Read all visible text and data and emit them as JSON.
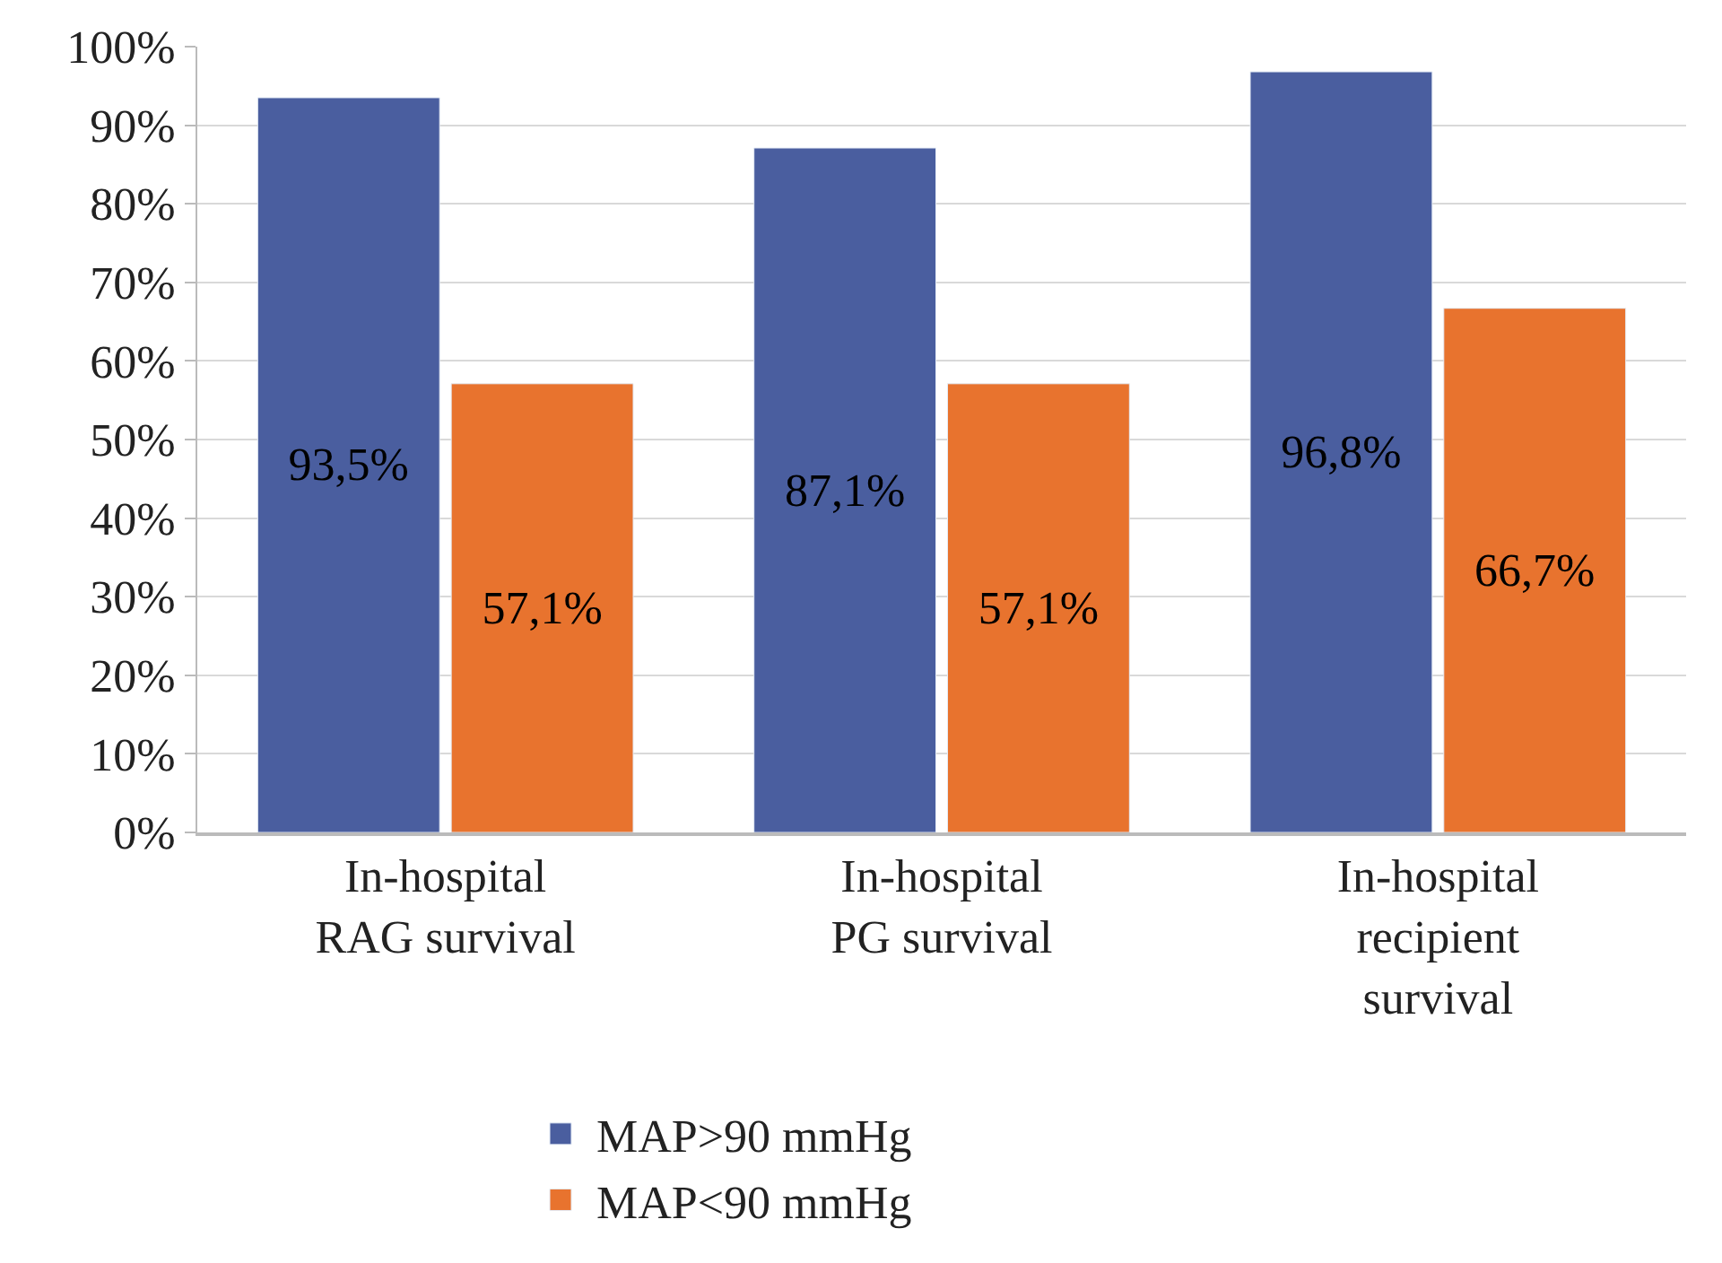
{
  "chart_data": {
    "type": "bar",
    "categories": [
      "In-hospital\nRAG survival",
      "In-hospital\nPG survival",
      "In-hospital\nrecipient\nsurvival"
    ],
    "series": [
      {
        "name": "MAP>90 mmHg",
        "color": "#4a5e9f",
        "values": [
          93.5,
          87.1,
          96.8
        ],
        "value_labels": [
          "93,5%",
          "87,1%",
          "96,8%"
        ]
      },
      {
        "name": "MAP<90 mmHg",
        "color": "#e8732e",
        "values": [
          57.1,
          57.1,
          66.7
        ],
        "value_labels": [
          "57,1%",
          "57,1%",
          "66,7%"
        ]
      }
    ],
    "ylim": [
      0,
      100
    ],
    "yticks": [
      {
        "value": 0,
        "label": "0%"
      },
      {
        "value": 10,
        "label": "10%"
      },
      {
        "value": 20,
        "label": "20%"
      },
      {
        "value": 30,
        "label": "30%"
      },
      {
        "value": 40,
        "label": "40%"
      },
      {
        "value": 50,
        "label": "50%"
      },
      {
        "value": 60,
        "label": "60%"
      },
      {
        "value": 70,
        "label": "70%"
      },
      {
        "value": 80,
        "label": "80%"
      },
      {
        "value": 90,
        "label": "90%"
      },
      {
        "value": 100,
        "label": "100%"
      }
    ],
    "grid": "y",
    "legend": "bottom"
  }
}
